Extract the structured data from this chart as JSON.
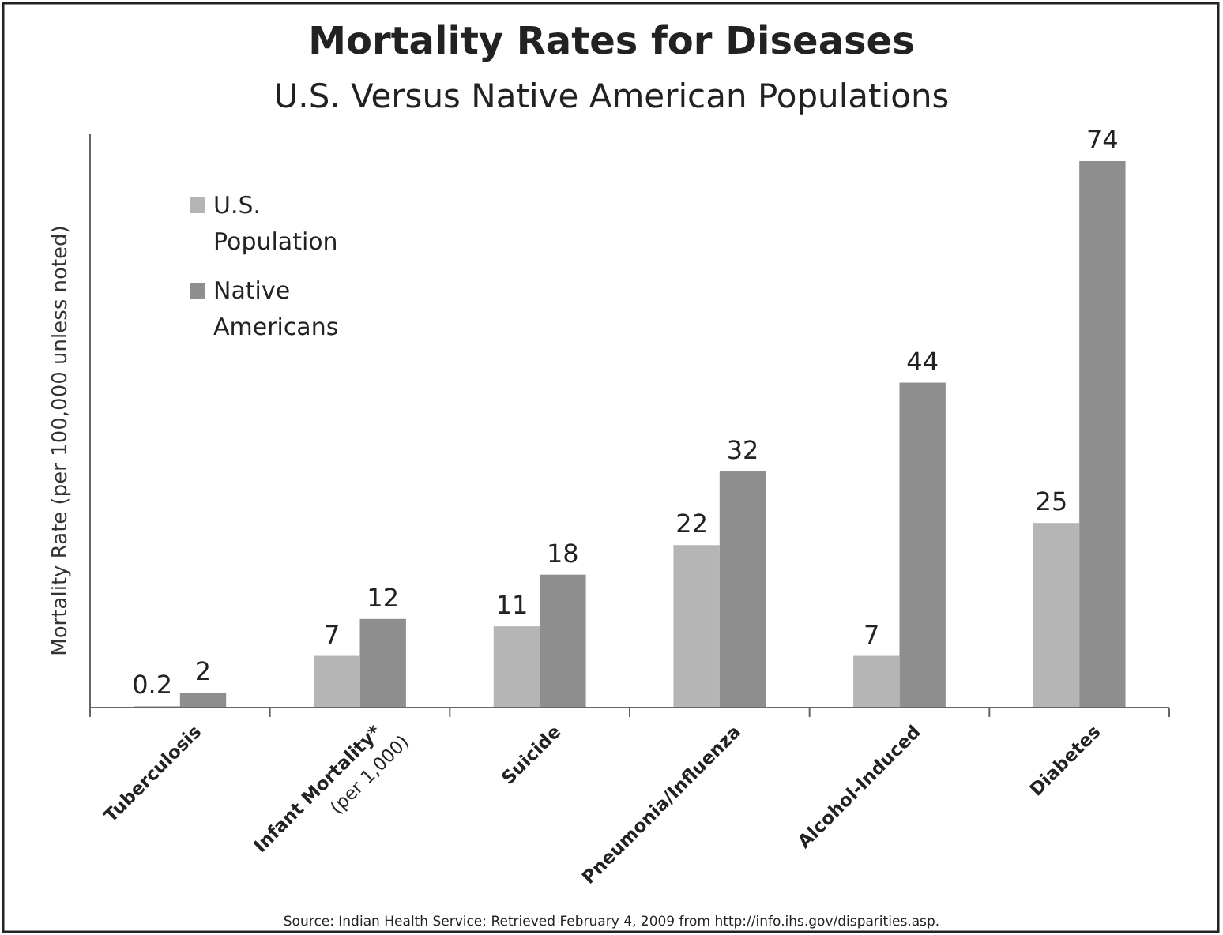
{
  "chart_data": {
    "type": "bar",
    "title": "Mortality Rates for Diseases",
    "subtitle": "U.S. Versus Native American Populations",
    "ylabel": "Mortality Rate (per 100,000 unless noted)",
    "categories": [
      "Tuberculosis",
      "Infant Mortality*\n(per 1,000)",
      "Suicide",
      "Pneumonia/Influenza",
      "Alcohol-Induced",
      "Diabetes"
    ],
    "series": [
      {
        "name": "U.S.\nPopulation",
        "color": "#b5b5b5",
        "values": [
          0.2,
          7,
          11,
          22,
          7,
          25
        ]
      },
      {
        "name": "Native\nAmericans",
        "color": "#8e8e8e",
        "values": [
          2,
          12,
          18,
          32,
          44,
          74
        ]
      }
    ],
    "data_labels": true,
    "legend": "top left",
    "annotations": [
      "Source: Indian Health Service; Retrieved February 4, 2009 from http://info.ihs.gov/disparities.asp."
    ]
  }
}
